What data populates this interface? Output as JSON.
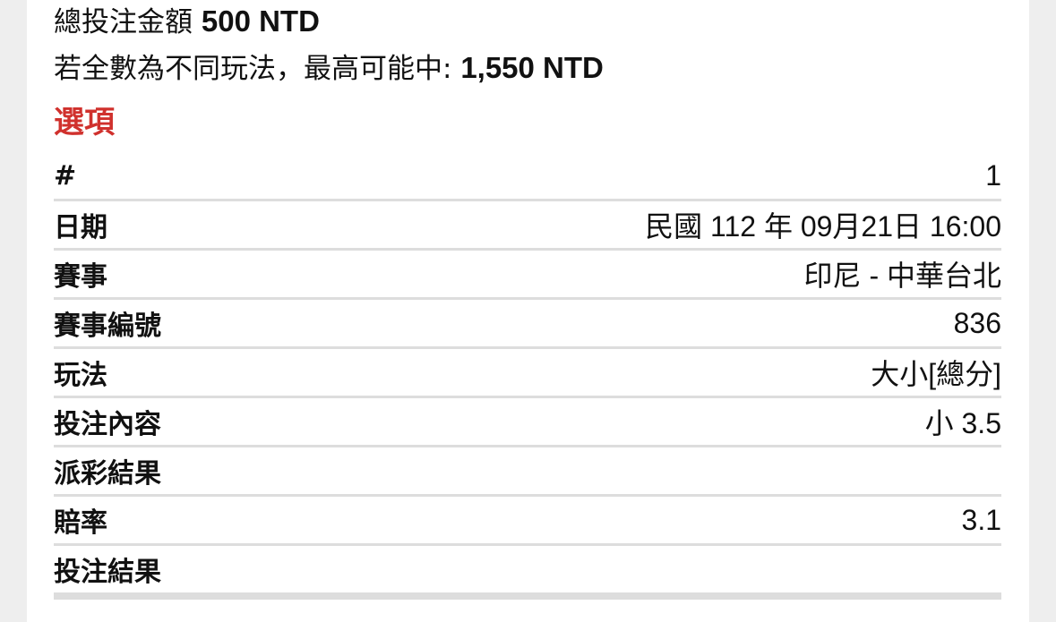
{
  "summary": {
    "total_label": "總投注金額",
    "total_value": "500 NTD",
    "max_label": "若全數為不同玩法，最高可能中:",
    "max_value": "1,550 NTD"
  },
  "section_title": "選項",
  "rows": [
    {
      "key": "#",
      "value": "1"
    },
    {
      "key": "日期",
      "value": "民國 112 年 09月21日 16:00"
    },
    {
      "key": "賽事",
      "value": "印尼 - 中華台北"
    },
    {
      "key": "賽事編號",
      "value": "836"
    },
    {
      "key": "玩法",
      "value": "大小[總分]"
    },
    {
      "key": "投注內容",
      "value": "小 3.5"
    },
    {
      "key": "派彩結果",
      "value": ""
    },
    {
      "key": "賠率",
      "value": "3.1"
    },
    {
      "key": "投注結果",
      "value": ""
    }
  ],
  "colors": {
    "accent": "#d0312d",
    "divider": "#dddddd",
    "background": "#eeeeee"
  }
}
